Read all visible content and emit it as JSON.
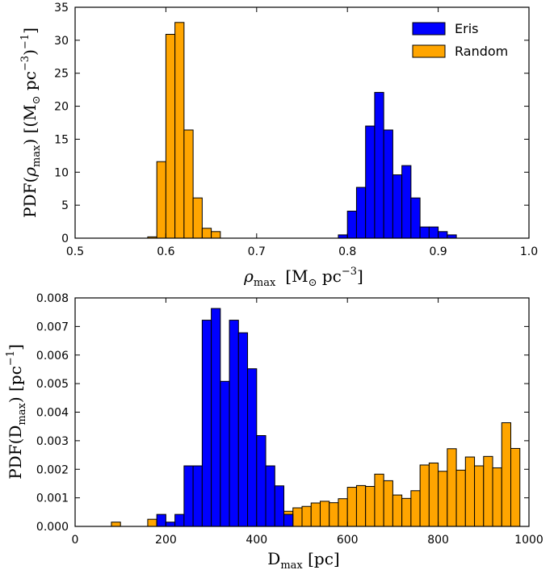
{
  "colors": {
    "eris": "#0000ff",
    "random": "#ffa500",
    "edge": "#000000"
  },
  "chart_data": [
    {
      "type": "bar",
      "title": "",
      "xlabel": "ρmax [M⊙ pc−3]",
      "xlabel_parts": {
        "sym": "ρ",
        "sub": "max",
        "unit": "[M",
        "sun_sub": "⊙",
        "mid": " pc",
        "sup": "−3",
        "close": "]"
      },
      "ylabel": "PDF(ρmax) [(M⊙ pc−3)−1]",
      "ylabel_parts": {
        "pre": "PDF(",
        "sym": "ρ",
        "sub": "max",
        "mid": ")  [(M",
        "sun_sub": "⊙",
        "pc": " pc",
        "sup": "−3",
        "close": ")",
        "sup2": "−1",
        "end": "]"
      },
      "xlim": [
        0.5,
        1.0
      ],
      "ylim": [
        0,
        35
      ],
      "xticks": [
        "0.5",
        "0.6",
        "0.7",
        "0.8",
        "0.9",
        "1.0"
      ],
      "yticks": [
        "0",
        "5",
        "10",
        "15",
        "20",
        "25",
        "30",
        "35"
      ],
      "legend": {
        "position": "top-right",
        "entries": [
          "Eris",
          "Random"
        ]
      },
      "bin_width": 0.01,
      "series": [
        {
          "name": "Random",
          "bin_starts": [
            0.58,
            0.59,
            0.6,
            0.61,
            0.62,
            0.63,
            0.64,
            0.65
          ],
          "values": [
            0.2,
            11.6,
            30.9,
            32.7,
            16.4,
            6.1,
            1.5,
            1.0
          ]
        },
        {
          "name": "Eris",
          "bin_starts": [
            0.79,
            0.8,
            0.81,
            0.82,
            0.83,
            0.84,
            0.85,
            0.86,
            0.87,
            0.88,
            0.89,
            0.9,
            0.91
          ],
          "values": [
            0.5,
            4.1,
            7.7,
            17.0,
            22.1,
            16.4,
            9.6,
            11.0,
            6.1,
            1.7,
            1.7,
            1.0,
            0.5
          ]
        }
      ]
    },
    {
      "type": "bar",
      "title": "",
      "xlabel": "Dmax [pc]",
      "xlabel_parts": {
        "sym": "D",
        "sub": "max",
        "unit": "  [pc]"
      },
      "ylabel": "PDF(Dmax) [pc−1]",
      "ylabel_parts": {
        "pre": "PDF(D",
        "sub": "max",
        "mid": ")  [pc",
        "sup": "−1",
        "end": "]"
      },
      "xlim": [
        0,
        1000
      ],
      "ylim": [
        0,
        0.008
      ],
      "xticks": [
        "0",
        "200",
        "400",
        "600",
        "800",
        "1000"
      ],
      "yticks": [
        "0.000",
        "0.001",
        "0.002",
        "0.003",
        "0.004",
        "0.005",
        "0.006",
        "0.007",
        "0.008"
      ],
      "bin_width": 20,
      "series": [
        {
          "name": "Random",
          "bin_starts": [
            80,
            160,
            180,
            440,
            460,
            480,
            500,
            520,
            540,
            560,
            580,
            600,
            620,
            640,
            660,
            680,
            700,
            720,
            740,
            760,
            780,
            800,
            820,
            840,
            860,
            880,
            900,
            920,
            940,
            960
          ],
          "values": [
            0.00015,
            0.00025,
            0.00015,
            0.00043,
            0.00053,
            0.00065,
            0.0007,
            0.00082,
            0.00088,
            0.00083,
            0.00097,
            0.00137,
            0.00143,
            0.0014,
            0.00183,
            0.0016,
            0.0011,
            0.00098,
            0.00125,
            0.00215,
            0.00222,
            0.00193,
            0.00272,
            0.00197,
            0.00243,
            0.00212,
            0.00245,
            0.00205,
            0.00363,
            0.00273
          ]
        },
        {
          "name": "Eris",
          "bin_starts": [
            180,
            200,
            220,
            240,
            260,
            280,
            300,
            320,
            340,
            360,
            380,
            400,
            420,
            440,
            460
          ],
          "values": [
            0.00042,
            0.00015,
            0.00042,
            0.00212,
            0.00212,
            0.00722,
            0.00763,
            0.00508,
            0.00722,
            0.00678,
            0.00552,
            0.00318,
            0.00212,
            0.00142,
            0.00042
          ]
        }
      ]
    }
  ]
}
